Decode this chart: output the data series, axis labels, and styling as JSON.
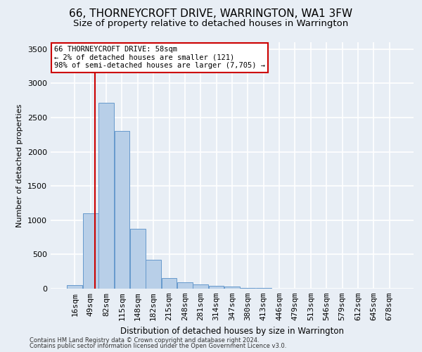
{
  "title": "66, THORNEYCROFT DRIVE, WARRINGTON, WA1 3FW",
  "subtitle": "Size of property relative to detached houses in Warrington",
  "xlabel": "Distribution of detached houses by size in Warrington",
  "ylabel": "Number of detached properties",
  "footer1": "Contains HM Land Registry data © Crown copyright and database right 2024.",
  "footer2": "Contains public sector information licensed under the Open Government Licence v3.0.",
  "bar_labels": [
    "16sqm",
    "49sqm",
    "82sqm",
    "115sqm",
    "148sqm",
    "182sqm",
    "215sqm",
    "248sqm",
    "281sqm",
    "314sqm",
    "347sqm",
    "380sqm",
    "413sqm",
    "446sqm",
    "479sqm",
    "513sqm",
    "546sqm",
    "579sqm",
    "612sqm",
    "645sqm",
    "678sqm"
  ],
  "bar_values": [
    50,
    1100,
    2720,
    2300,
    870,
    425,
    155,
    90,
    60,
    45,
    30,
    15,
    10,
    5,
    3,
    2,
    1,
    1,
    0,
    0,
    0
  ],
  "bar_color": "#b8cfe8",
  "bar_edgecolor": "#6699cc",
  "property_line_x": 1.28,
  "property_line_color": "#cc0000",
  "annotation_text": "66 THORNEYCROFT DRIVE: 58sqm\n← 2% of detached houses are smaller (121)\n98% of semi-detached houses are larger (7,705) →",
  "annotation_box_color": "#ffffff",
  "annotation_box_edgecolor": "#cc0000",
  "ylim": [
    0,
    3600
  ],
  "yticks": [
    0,
    500,
    1000,
    1500,
    2000,
    2500,
    3000,
    3500
  ],
  "background_color": "#e8eef5",
  "plot_background": "#e8eef5",
  "grid_color": "#ffffff",
  "title_fontsize": 11,
  "subtitle_fontsize": 9.5
}
